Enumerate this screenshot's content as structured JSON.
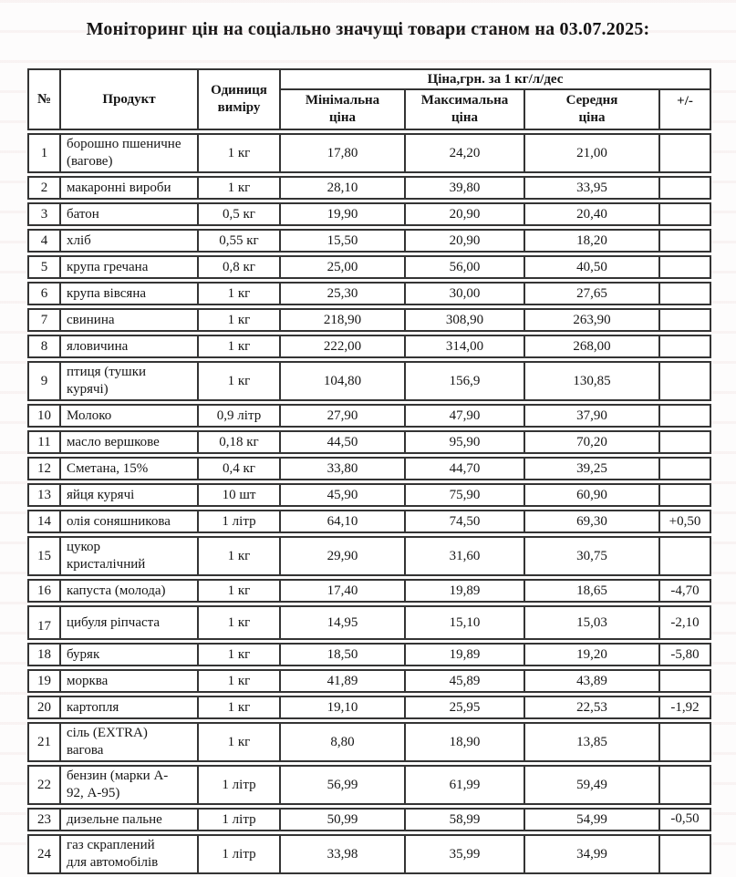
{
  "title": "Моніторинг цін на соціально значущі товари станом на 03.07.2025:",
  "colors": {
    "border": "#343434",
    "text": "#161616",
    "scan_band": "#ece1e1",
    "page": "#fdfcfc"
  },
  "table": {
    "headers": {
      "num": "№",
      "product": "Продукт",
      "unit": "Одиниця\nвиміру",
      "price_group": "Ціна,грн. за 1 кг/л/дес",
      "min": "Мінімальна\nціна",
      "max": "Максимальна\nціна",
      "avg": "Середня\nціна",
      "delta": "+/-"
    },
    "rows": [
      {
        "num": "1",
        "product": "борошно пшеничне\n(вагове)",
        "unit": "1 кг",
        "min": "17,80",
        "max": "24,20",
        "avg": "21,00",
        "delta": ""
      },
      {
        "num": "2",
        "product": "макаронні вироби",
        "unit": "1 кг",
        "min": "28,10",
        "max": "39,80",
        "avg": "33,95",
        "delta": ""
      },
      {
        "num": "3",
        "product": "батон",
        "unit": "0,5 кг",
        "min": "19,90",
        "max": "20,90",
        "avg": "20,40",
        "delta": ""
      },
      {
        "num": "4",
        "product": "хліб",
        "unit": "0,55 кг",
        "min": "15,50",
        "max": "20,90",
        "avg": "18,20",
        "delta": ""
      },
      {
        "num": "5",
        "product": "крупа гречана",
        "unit": "0,8 кг",
        "min": "25,00",
        "max": "56,00",
        "avg": "40,50",
        "delta": ""
      },
      {
        "num": "6",
        "product": "крупа вівсяна",
        "unit": "1 кг",
        "min": "25,30",
        "max": "30,00",
        "avg": "27,65",
        "delta": ""
      },
      {
        "num": "7",
        "product": "свинина",
        "unit": "1 кг",
        "min": "218,90",
        "max": "308,90",
        "avg": "263,90",
        "delta": ""
      },
      {
        "num": "8",
        "product": "яловичина",
        "unit": "1 кг",
        "min": "222,00",
        "max": "314,00",
        "avg": "268,00",
        "delta": ""
      },
      {
        "num": "9",
        "product": "птиця (тушки\nкурячі)",
        "unit": "1 кг",
        "min": "104,80",
        "max": "156,9",
        "avg": "130,85",
        "delta": ""
      },
      {
        "num": "10",
        "product": "Молоко",
        "unit": "0,9 літр",
        "min": "27,90",
        "max": "47,90",
        "avg": "37,90",
        "delta": ""
      },
      {
        "num": "11",
        "product": "масло вершкове",
        "unit": "0,18 кг",
        "min": "44,50",
        "max": "95,90",
        "avg": "70,20",
        "delta": ""
      },
      {
        "num": "12",
        "product": "Сметана, 15%",
        "unit": "0,4 кг",
        "min": "33,80",
        "max": "44,70",
        "avg": "39,25",
        "delta": ""
      },
      {
        "num": "13",
        "product": "яйця курячі",
        "unit": "10 шт",
        "min": "45,90",
        "max": "75,90",
        "avg": "60,90",
        "delta": ""
      },
      {
        "num": "14",
        "product": "олія соняшникова",
        "unit": "1 літр",
        "min": "64,10",
        "max": "74,50",
        "avg": "69,30",
        "delta": "+0,50"
      },
      {
        "num": "15",
        "product": "цукор\nкристалічний",
        "unit": "1 кг",
        "min": "29,90",
        "max": "31,60",
        "avg": "30,75",
        "delta": ""
      },
      {
        "num": "16",
        "product": "капуста (молода)",
        "unit": "1 кг",
        "min": "17,40",
        "max": "19,89",
        "avg": "18,65",
        "delta": "-4,70"
      },
      {
        "num": "17",
        "product": "цибуля ріпчаста",
        "unit": "1 кг",
        "min": "14,95",
        "max": "15,10",
        "avg": "15,03",
        "delta": "-2,10"
      },
      {
        "num": "18",
        "product": "буряк",
        "unit": "1 кг",
        "min": "18,50",
        "max": "19,89",
        "avg": "19,20",
        "delta": "-5,80"
      },
      {
        "num": "19",
        "product": "морква",
        "unit": "1 кг",
        "min": "41,89",
        "max": "45,89",
        "avg": "43,89",
        "delta": ""
      },
      {
        "num": "20",
        "product": "картопля",
        "unit": "1 кг",
        "min": "19,10",
        "max": "25,95",
        "avg": "22,53",
        "delta": "-1,92"
      },
      {
        "num": "21",
        "product": "сіль (EXTRA)\nвагова",
        "unit": "1 кг",
        "min": "8,80",
        "max": "18,90",
        "avg": "13,85",
        "delta": ""
      },
      {
        "num": "22",
        "product": "бензин (марки А-\n92, А-95)",
        "unit": "1 літр",
        "min": "56,99",
        "max": "61,99",
        "avg": "59,49",
        "delta": ""
      },
      {
        "num": "23",
        "product": "дизельне пальне",
        "unit": "1 літр",
        "min": "50,99",
        "max": "58,99",
        "avg": "54,99",
        "delta": "-0,50"
      },
      {
        "num": "24",
        "product": "газ скраплений\nдля автомобілів",
        "unit": "1 літр",
        "min": "33,98",
        "max": "35,99",
        "avg": "34,99",
        "delta": ""
      }
    ]
  }
}
